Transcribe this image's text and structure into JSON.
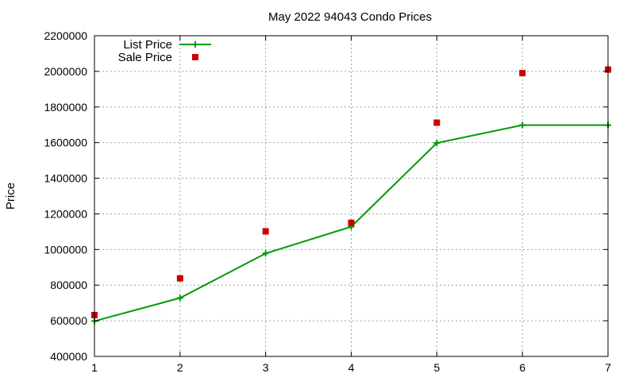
{
  "chart_data": {
    "type": "line",
    "title": "May 2022 94043 Condo Prices",
    "xlabel": "",
    "ylabel": "Price",
    "x": [
      1,
      2,
      3,
      4,
      5,
      6,
      7
    ],
    "xlim": [
      1,
      7
    ],
    "ylim": [
      400000,
      2200000
    ],
    "xticks": [
      "1",
      "2",
      "3",
      "4",
      "5",
      "6",
      "7"
    ],
    "yticks": [
      "400000",
      "600000",
      "800000",
      "1000000",
      "1200000",
      "1400000",
      "1600000",
      "1800000",
      "2000000",
      "2200000"
    ],
    "grid": true,
    "legend_position": "top-left",
    "series": [
      {
        "name": "List Price",
        "style": "linespoints",
        "marker": "plus",
        "color": "#009900",
        "values": [
          598000,
          728000,
          978000,
          1128000,
          1598000,
          1698000,
          1698000
        ]
      },
      {
        "name": "Sale Price",
        "style": "points",
        "marker": "square",
        "color": "#cc0000",
        "values": [
          632000,
          838000,
          1102000,
          1150000,
          1712000,
          1990000,
          2010000
        ]
      }
    ]
  }
}
